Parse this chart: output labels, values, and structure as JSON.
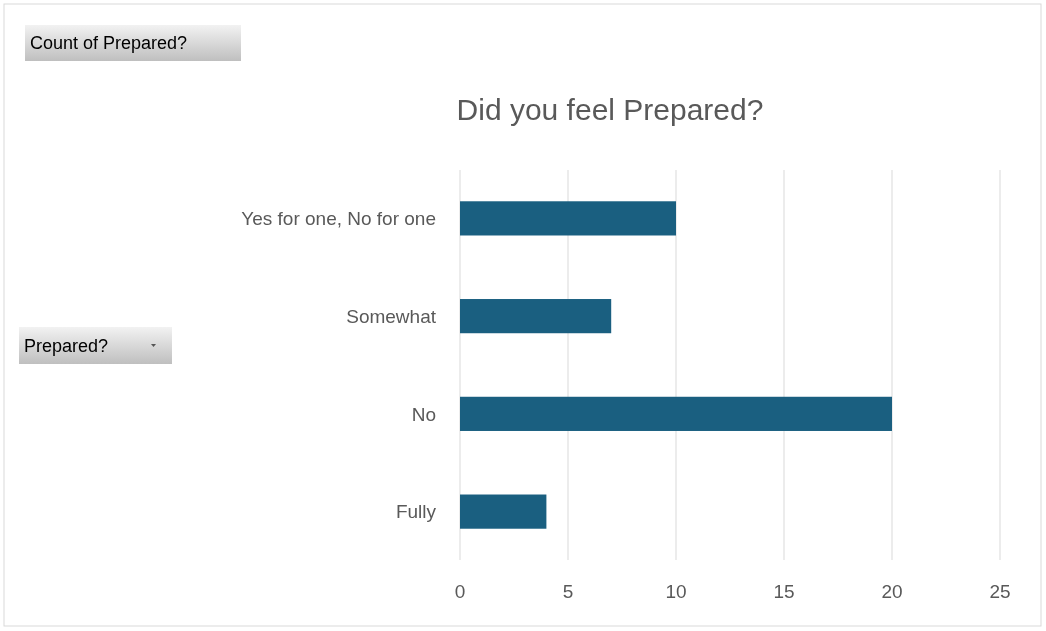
{
  "chart_data": {
    "type": "bar",
    "orientation": "horizontal",
    "title": "Did you feel Prepared?",
    "annotations": [
      "Count of Prepared?",
      "Prepared?"
    ],
    "categories": [
      "Yes for one, No for one",
      "Somewhat",
      "No",
      "Fully"
    ],
    "values": [
      10,
      7,
      20,
      4
    ],
    "color": "#1a5f80",
    "xlim": [
      0,
      25
    ],
    "xticks": [
      0,
      5,
      10,
      15,
      20,
      25
    ],
    "grid": "x"
  }
}
